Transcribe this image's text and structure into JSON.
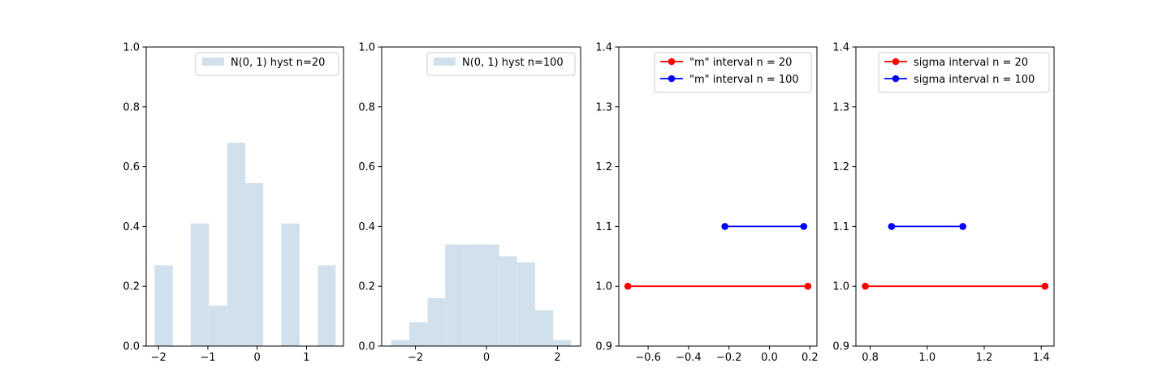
{
  "chart_data": [
    {
      "type": "bar",
      "xlabel": "",
      "ylabel": "",
      "xlim": [
        -2.25,
        1.75
      ],
      "ylim": [
        0,
        1.0
      ],
      "xticks": [
        -2,
        -1,
        0,
        1
      ],
      "xtick_labels": [
        "−2",
        "−1",
        "0",
        "1"
      ],
      "yticks": [
        0,
        0.2,
        0.4,
        0.6,
        0.8,
        1.0
      ],
      "ytick_labels": [
        "0.0",
        "0.2",
        "0.4",
        "0.6",
        "0.8",
        "1.0"
      ],
      "bins": [
        {
          "x0": -2.08,
          "x1": -1.71,
          "value": 0.27
        },
        {
          "x0": -1.71,
          "x1": -1.35,
          "value": 0.0
        },
        {
          "x0": -1.35,
          "x1": -0.98,
          "value": 0.41
        },
        {
          "x0": -0.98,
          "x1": -0.61,
          "value": 0.135
        },
        {
          "x0": -0.61,
          "x1": -0.24,
          "value": 0.68
        },
        {
          "x0": -0.24,
          "x1": 0.12,
          "value": 0.545
        },
        {
          "x0": 0.12,
          "x1": 0.49,
          "value": 0.0
        },
        {
          "x0": 0.49,
          "x1": 0.86,
          "value": 0.41
        },
        {
          "x0": 0.86,
          "x1": 1.23,
          "value": 0.0
        },
        {
          "x0": 1.23,
          "x1": 1.59,
          "value": 0.27
        }
      ],
      "color": "#d0e1ed",
      "legend": [
        {
          "label": "N(0, 1) hyst n=20",
          "kind": "patch"
        }
      ],
      "legend_loc": "upper right",
      "grid": false
    },
    {
      "type": "bar",
      "xlabel": "",
      "ylabel": "",
      "xlim": [
        -2.95,
        2.65
      ],
      "ylim": [
        0,
        1.0
      ],
      "xticks": [
        -2,
        0,
        2
      ],
      "xtick_labels": [
        "−2",
        "0",
        "2"
      ],
      "yticks": [
        0,
        0.2,
        0.4,
        0.6,
        0.8,
        1.0
      ],
      "ytick_labels": [
        "0.0",
        "0.2",
        "0.4",
        "0.6",
        "0.8",
        "1.0"
      ],
      "bins": [
        {
          "x0": -2.68,
          "x1": -2.17,
          "value": 0.02
        },
        {
          "x0": -2.17,
          "x1": -1.66,
          "value": 0.08
        },
        {
          "x0": -1.66,
          "x1": -1.16,
          "value": 0.16
        },
        {
          "x0": -1.16,
          "x1": -0.65,
          "value": 0.34
        },
        {
          "x0": -0.65,
          "x1": -0.15,
          "value": 0.34
        },
        {
          "x0": -0.15,
          "x1": 0.36,
          "value": 0.34
        },
        {
          "x0": 0.36,
          "x1": 0.86,
          "value": 0.3
        },
        {
          "x0": 0.86,
          "x1": 1.37,
          "value": 0.28
        },
        {
          "x0": 1.37,
          "x1": 1.88,
          "value": 0.12
        },
        {
          "x0": 1.88,
          "x1": 2.38,
          "value": 0.02
        }
      ],
      "color": "#d0e1ed",
      "legend": [
        {
          "label": "N(0, 1) hyst n=100",
          "kind": "patch"
        }
      ],
      "legend_loc": "upper right",
      "grid": false
    },
    {
      "type": "line",
      "xlabel": "",
      "ylabel": "",
      "xlim": [
        -0.745,
        0.235
      ],
      "ylim": [
        0.9,
        1.4
      ],
      "xticks": [
        -0.6,
        -0.4,
        -0.2,
        0.0,
        0.2
      ],
      "xtick_labels": [
        "−0.6",
        "−0.4",
        "−0.2",
        "0.0",
        "0.2"
      ],
      "yticks": [
        0.9,
        1.0,
        1.1,
        1.2,
        1.3,
        1.4
      ],
      "ytick_labels": [
        "0.9",
        "1.0",
        "1.1",
        "1.2",
        "1.3",
        "1.4"
      ],
      "series": [
        {
          "name": "\"m\" interval n = 20",
          "x": [
            -0.7,
            0.19
          ],
          "y": [
            1.0,
            1.0
          ],
          "color": "#ff0000",
          "marker": "o"
        },
        {
          "name": "\"m\" interval n = 100",
          "x": [
            -0.22,
            0.17
          ],
          "y": [
            1.1,
            1.1
          ],
          "color": "#0000ff",
          "marker": "o"
        }
      ],
      "legend_loc": "upper right",
      "grid": false
    },
    {
      "type": "line",
      "xlabel": "",
      "ylabel": "",
      "xlim": [
        0.75,
        1.445
      ],
      "ylim": [
        0.9,
        1.4
      ],
      "xticks": [
        0.8,
        1.0,
        1.2,
        1.4
      ],
      "xtick_labels": [
        "0.8",
        "1.0",
        "1.2",
        "1.4"
      ],
      "yticks": [
        0.9,
        1.0,
        1.1,
        1.2,
        1.3,
        1.4
      ],
      "ytick_labels": [
        "0.9",
        "1.0",
        "1.1",
        "1.2",
        "1.3",
        "1.4"
      ],
      "series": [
        {
          "name": "sigma interval n = 20",
          "x": [
            0.783,
            1.413
          ],
          "y": [
            1.0,
            1.0
          ],
          "color": "#ff0000",
          "marker": "o"
        },
        {
          "name": "sigma interval n = 100",
          "x": [
            0.875,
            1.125
          ],
          "y": [
            1.1,
            1.1
          ],
          "color": "#0000ff",
          "marker": "o"
        }
      ],
      "legend_loc": "upper right",
      "grid": false
    }
  ]
}
